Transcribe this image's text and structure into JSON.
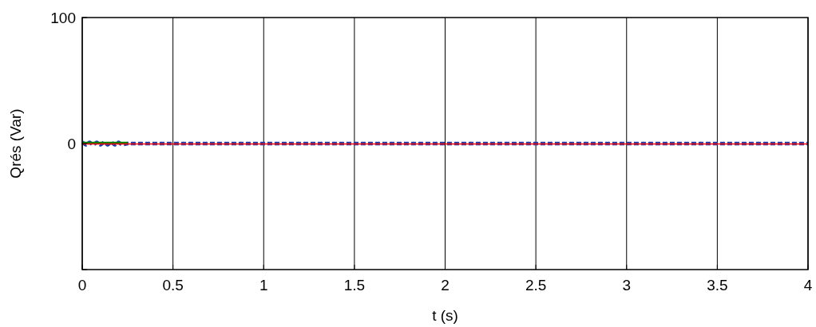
{
  "chart_data": {
    "type": "line",
    "xlabel": "t (s)",
    "ylabel": "Qrés (Var)",
    "xlim": [
      0,
      4
    ],
    "xticks": [
      0,
      0.5,
      1,
      1.5,
      2,
      2.5,
      3,
      3.5,
      4
    ],
    "ylim": [
      -100,
      100
    ],
    "yticks": [
      {
        "value": -100,
        "label": null
      },
      0,
      100
    ],
    "grid": "x",
    "series": [
      {
        "color": "#1f3ea0",
        "x": [
          0,
          0.02,
          0.04,
          0.06,
          0.08,
          0.1,
          0.12,
          0.14,
          0.16,
          0.18,
          0.2,
          0.22,
          0.25,
          0.26,
          4
        ],
        "values": [
          1,
          -1,
          1,
          -1,
          1,
          -1,
          1,
          -1,
          1,
          -1,
          1,
          -1,
          0,
          0,
          0
        ],
        "line_style": "dashed"
      },
      {
        "color": "#008000",
        "x": [
          0,
          0.25
        ],
        "values": [
          0.5,
          0.5
        ]
      },
      {
        "color": "#ff0000",
        "x": [
          0,
          4
        ],
        "values": [
          -0.3,
          -0.3
        ]
      }
    ]
  }
}
